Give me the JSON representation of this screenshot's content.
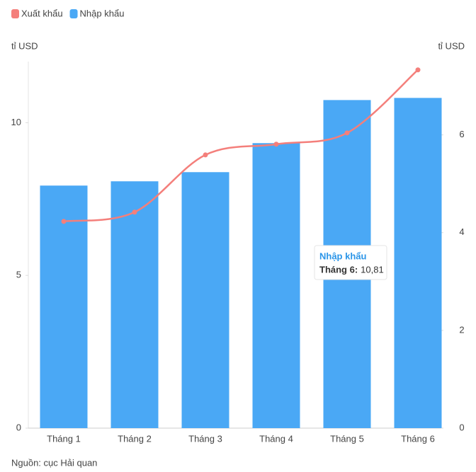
{
  "chart_data": {
    "type": "bar-line",
    "categories": [
      "Tháng 1",
      "Tháng 2",
      "Tháng 3",
      "Tháng 4",
      "Tháng 5",
      "Tháng 6"
    ],
    "series": [
      {
        "name": "Xuất khẩu",
        "color": "#f47f7b",
        "type": "line",
        "axis": "y2",
        "values": [
          4.23,
          4.42,
          5.59,
          5.81,
          6.04,
          7.33
        ]
      },
      {
        "name": "Nhập khẩu",
        "color": "#4aa8f5",
        "type": "bar",
        "values": [
          7.94,
          8.08,
          8.38,
          9.33,
          10.74,
          10.81
        ]
      }
    ],
    "y_label": "tỉ USD",
    "y2_label": "tỉ USD",
    "ylim": [
      0,
      12
    ],
    "yticks": [
      0,
      5,
      10
    ],
    "y2lim": [
      0,
      7.5
    ],
    "y2ticks": [
      0,
      2,
      4,
      6
    ],
    "grid": false,
    "legend": "top-left",
    "tooltip": {
      "label": "Tháng 6:",
      "value_label": "10,81"
    },
    "source": "Nguồn: cục Hải quan"
  }
}
